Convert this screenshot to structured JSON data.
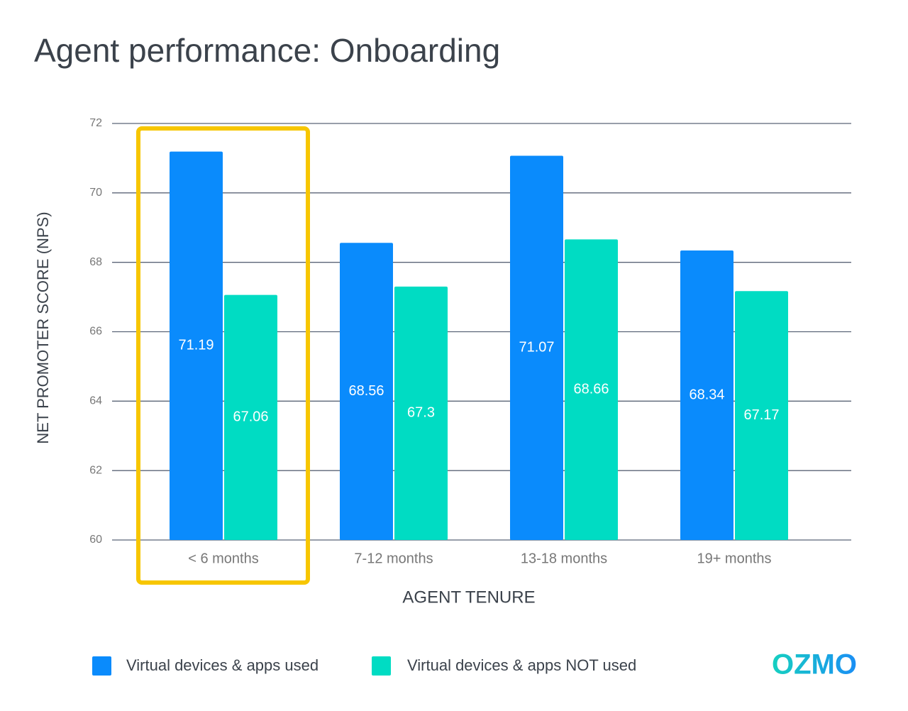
{
  "chart_data": {
    "type": "bar",
    "title": "Agent performance: Onboarding",
    "x_label": "AGENT TENURE",
    "y_label": "NET PROMOTER SCORE (NPS)",
    "categories": [
      "< 6 months",
      "7-12 months",
      "13-18 months",
      "19+ months"
    ],
    "series": [
      {
        "name": "Virtual devices & apps used",
        "color": "#0a8bfc",
        "values": [
          71.19,
          68.56,
          71.07,
          68.34
        ]
      },
      {
        "name": "Virtual devices & apps NOT used",
        "color": "#00dcc3",
        "values": [
          67.06,
          67.3,
          68.66,
          67.17
        ]
      }
    ],
    "ylim": [
      60,
      72
    ],
    "yticks": [
      60,
      62,
      64,
      66,
      68,
      70,
      72
    ],
    "grid": true,
    "legend": "bottom"
  },
  "logo": "OZMO"
}
